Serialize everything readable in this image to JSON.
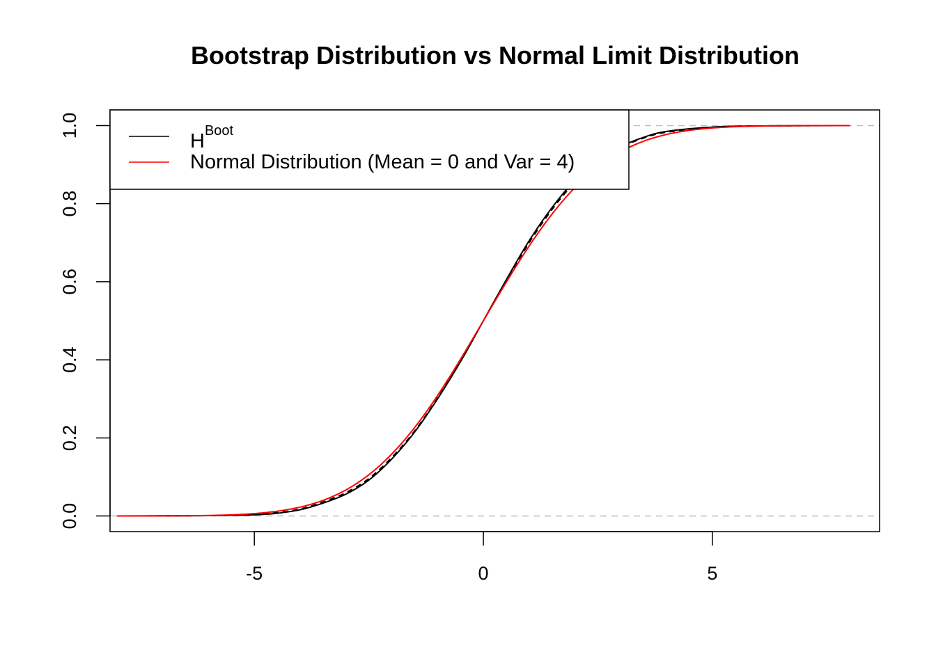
{
  "chart_data": {
    "type": "line",
    "title": "Bootstrap Distribution vs Normal Limit Distribution",
    "xlabel": "",
    "ylabel": "",
    "xlim": [
      -8.15,
      8.65
    ],
    "ylim": [
      -0.04,
      1.04
    ],
    "x_ticks": [
      -5,
      0,
      5
    ],
    "x_tick_labels": [
      "-5",
      "0",
      "5"
    ],
    "y_ticks": [
      0.0,
      0.2,
      0.4,
      0.6,
      0.8,
      1.0
    ],
    "y_tick_labels": [
      "0.0",
      "0.2",
      "0.4",
      "0.6",
      "0.8",
      "1.0"
    ],
    "grid": false,
    "reference_lines": [
      {
        "y": 0,
        "style": "dashed",
        "color": "#bebebe"
      },
      {
        "y": 1,
        "style": "dashed",
        "color": "#bebebe"
      }
    ],
    "legend": {
      "position": "top-left",
      "entries": [
        {
          "label": "H",
          "superscript": "Boot",
          "color": "#000000"
        },
        {
          "label": "Normal Distribution (Mean = 0 and Var = 4)",
          "color": "#ff0000"
        }
      ]
    },
    "series": [
      {
        "name": "H Boot",
        "color": "#000000",
        "style": "solid",
        "x": [
          -8,
          -6,
          -5,
          -4.5,
          -4,
          -3.5,
          -3,
          -2.5,
          -2,
          -1.5,
          -1,
          -0.5,
          0,
          0.5,
          1,
          1.5,
          2,
          2.5,
          3,
          3.5,
          4,
          5,
          6,
          8
        ],
        "y": [
          0.0,
          0.001,
          0.003,
          0.007,
          0.016,
          0.033,
          0.056,
          0.092,
          0.146,
          0.215,
          0.3,
          0.395,
          0.5,
          0.605,
          0.705,
          0.79,
          0.86,
          0.91,
          0.946,
          0.97,
          0.985,
          0.996,
          0.999,
          1.0
        ]
      },
      {
        "name": "H Boot (dashed)",
        "color": "#000000",
        "style": "dashed",
        "x": [
          -8,
          -6,
          -5,
          -4.5,
          -4,
          -3.5,
          -3,
          -2.5,
          -2,
          -1.5,
          -1,
          -0.5,
          0,
          0.5,
          1,
          1.5,
          2,
          2.5,
          3,
          3.5,
          4,
          5,
          6,
          8
        ],
        "y": [
          0.0,
          0.001,
          0.004,
          0.009,
          0.018,
          0.036,
          0.06,
          0.096,
          0.15,
          0.218,
          0.302,
          0.396,
          0.5,
          0.603,
          0.7,
          0.785,
          0.855,
          0.907,
          0.944,
          0.968,
          0.983,
          0.996,
          0.999,
          1.0
        ]
      },
      {
        "name": "Normal Distribution (Mean = 0 and Var = 4)",
        "color": "#ff0000",
        "style": "solid",
        "mean": 0,
        "sd": 2,
        "x_range": [
          -8,
          8
        ]
      }
    ]
  }
}
